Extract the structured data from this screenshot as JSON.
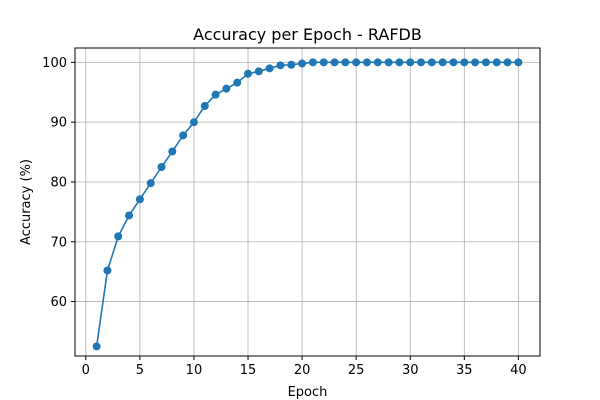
{
  "chart_data": {
    "type": "line",
    "title": "Accuracy per Epoch - RAFDB",
    "xlabel": "Epoch",
    "ylabel": "Accuracy (%)",
    "xlim": [
      -1,
      42
    ],
    "ylim": [
      50.9,
      102.4
    ],
    "xticks": [
      0,
      5,
      10,
      15,
      20,
      25,
      30,
      35,
      40
    ],
    "yticks": [
      60,
      70,
      80,
      90,
      100
    ],
    "grid": true,
    "color": "#1f77b4",
    "marker": "circle",
    "series": [
      {
        "x": [
          1,
          2,
          3,
          4,
          5,
          6,
          7,
          8,
          9,
          10,
          11,
          12,
          13,
          14,
          15,
          16,
          17,
          18,
          19,
          20,
          21,
          22,
          23,
          24,
          25,
          26,
          27,
          28,
          29,
          30,
          31,
          32,
          33,
          34,
          35,
          36,
          37,
          38,
          39,
          40
        ],
        "values": [
          52.5,
          65.2,
          70.9,
          74.4,
          77.1,
          79.8,
          82.5,
          85.1,
          87.8,
          90.0,
          92.7,
          94.6,
          95.6,
          96.6,
          98.1,
          98.5,
          99.0,
          99.5,
          99.6,
          99.8,
          100,
          100,
          100,
          100,
          100,
          100,
          100,
          100,
          100,
          100,
          100,
          100,
          100,
          100,
          100,
          100,
          100,
          100,
          100,
          100
        ]
      }
    ]
  }
}
